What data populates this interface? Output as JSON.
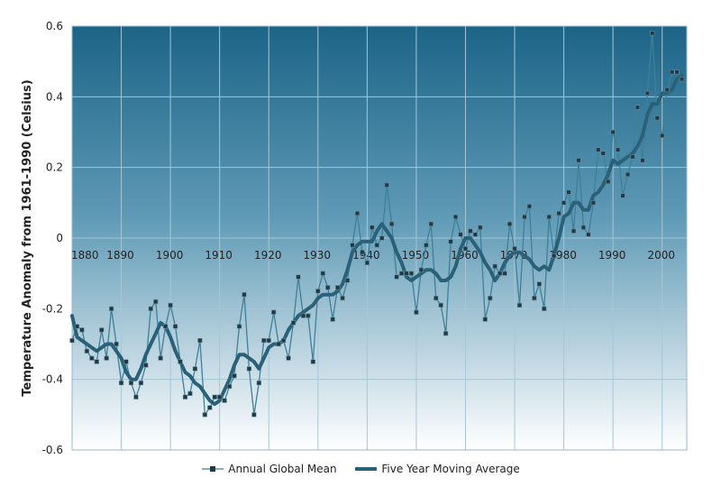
{
  "chart_data": {
    "type": "line",
    "ylabel": "Temperature Anomaly from 1961-1990 (Celsius)",
    "xlim": [
      1880,
      2005
    ],
    "ylim": [
      -0.6,
      0.6
    ],
    "x_ticks": [
      "1880",
      "1890",
      "1900",
      "1910",
      "1920",
      "1930",
      "1940",
      "1950",
      "1960",
      "1970",
      "1980",
      "1990",
      "2000"
    ],
    "y_ticks": [
      "0.6",
      "0.4",
      "0.2",
      "0",
      "-0.2",
      "-0.4",
      "-0.6"
    ],
    "grid": true,
    "legend_position": "bottom",
    "colors": {
      "plot_top": "#1c6487",
      "plot_bottom": "#ffffff",
      "annual_line": "#3f7f98",
      "moving_avg": "#2a6178",
      "marker": "#1f3945"
    },
    "x": [
      1880,
      1881,
      1882,
      1883,
      1884,
      1885,
      1886,
      1887,
      1888,
      1889,
      1890,
      1891,
      1892,
      1893,
      1894,
      1895,
      1896,
      1897,
      1898,
      1899,
      1900,
      1901,
      1902,
      1903,
      1904,
      1905,
      1906,
      1907,
      1908,
      1909,
      1910,
      1911,
      1912,
      1913,
      1914,
      1915,
      1916,
      1917,
      1918,
      1919,
      1920,
      1921,
      1922,
      1923,
      1924,
      1925,
      1926,
      1927,
      1928,
      1929,
      1930,
      1931,
      1932,
      1933,
      1934,
      1935,
      1936,
      1937,
      1938,
      1939,
      1940,
      1941,
      1942,
      1943,
      1944,
      1945,
      1946,
      1947,
      1948,
      1949,
      1950,
      1951,
      1952,
      1953,
      1954,
      1955,
      1956,
      1957,
      1958,
      1959,
      1960,
      1961,
      1962,
      1963,
      1964,
      1965,
      1966,
      1967,
      1968,
      1969,
      1970,
      1971,
      1972,
      1973,
      1974,
      1975,
      1976,
      1977,
      1978,
      1979,
      1980,
      1981,
      1982,
      1983,
      1984,
      1985,
      1986,
      1987,
      1988,
      1989,
      1990,
      1991,
      1992,
      1993,
      1994,
      1995,
      1996,
      1997,
      1998,
      1999,
      2000,
      2001,
      2002,
      2003,
      2004
    ],
    "series": [
      {
        "name": "Annual Global Mean",
        "values": [
          -0.29,
          -0.25,
          -0.26,
          -0.32,
          -0.34,
          -0.35,
          -0.26,
          -0.34,
          -0.2,
          -0.3,
          -0.41,
          -0.35,
          -0.41,
          -0.45,
          -0.41,
          -0.36,
          -0.2,
          -0.18,
          -0.34,
          -0.25,
          -0.19,
          -0.25,
          -0.35,
          -0.45,
          -0.44,
          -0.37,
          -0.29,
          -0.5,
          -0.48,
          -0.45,
          -0.45,
          -0.46,
          -0.42,
          -0.39,
          -0.25,
          -0.16,
          -0.37,
          -0.5,
          -0.41,
          -0.29,
          -0.29,
          -0.21,
          -0.3,
          -0.29,
          -0.34,
          -0.24,
          -0.11,
          -0.22,
          -0.22,
          -0.35,
          -0.15,
          -0.1,
          -0.14,
          -0.23,
          -0.14,
          -0.17,
          -0.12,
          -0.02,
          0.07,
          -0.04,
          -0.07,
          0.03,
          -0.02,
          0.0,
          0.15,
          0.04,
          -0.11,
          -0.1,
          -0.1,
          -0.1,
          -0.21,
          -0.09,
          -0.02,
          0.04,
          -0.17,
          -0.19,
          -0.27,
          -0.01,
          0.06,
          0.01,
          -0.03,
          0.02,
          0.01,
          0.03,
          -0.23,
          -0.17,
          -0.08,
          -0.1,
          -0.1,
          0.04,
          -0.03,
          -0.19,
          0.06,
          0.09,
          -0.17,
          -0.13,
          -0.2,
          0.06,
          -0.05,
          0.07,
          0.1,
          0.13,
          0.02,
          0.22,
          0.03,
          0.01,
          0.1,
          0.25,
          0.24,
          0.16,
          0.3,
          0.25,
          0.12,
          0.18,
          0.23,
          0.37,
          0.22,
          0.41,
          0.58,
          0.34,
          0.29,
          0.42,
          0.47,
          0.47,
          0.45
        ]
      },
      {
        "name": "Five Year Moving Average",
        "values": [
          -0.22,
          -0.28,
          -0.29,
          -0.3,
          -0.31,
          -0.32,
          -0.31,
          -0.3,
          -0.3,
          -0.32,
          -0.34,
          -0.38,
          -0.4,
          -0.4,
          -0.37,
          -0.33,
          -0.3,
          -0.27,
          -0.24,
          -0.25,
          -0.28,
          -0.32,
          -0.35,
          -0.38,
          -0.39,
          -0.41,
          -0.42,
          -0.44,
          -0.46,
          -0.47,
          -0.46,
          -0.43,
          -0.4,
          -0.36,
          -0.33,
          -0.33,
          -0.34,
          -0.35,
          -0.37,
          -0.34,
          -0.31,
          -0.3,
          -0.3,
          -0.29,
          -0.26,
          -0.24,
          -0.22,
          -0.21,
          -0.2,
          -0.19,
          -0.17,
          -0.16,
          -0.16,
          -0.16,
          -0.15,
          -0.13,
          -0.09,
          -0.04,
          -0.02,
          -0.01,
          -0.01,
          -0.01,
          0.02,
          0.04,
          0.02,
          0.0,
          -0.04,
          -0.07,
          -0.11,
          -0.12,
          -0.11,
          -0.1,
          -0.09,
          -0.09,
          -0.1,
          -0.12,
          -0.12,
          -0.11,
          -0.08,
          -0.03,
          0.0,
          0.0,
          -0.02,
          -0.04,
          -0.07,
          -0.09,
          -0.12,
          -0.1,
          -0.07,
          -0.05,
          -0.04,
          -0.04,
          -0.05,
          -0.06,
          -0.08,
          -0.09,
          -0.08,
          -0.09,
          -0.05,
          0.0,
          0.06,
          0.07,
          0.1,
          0.1,
          0.08,
          0.08,
          0.12,
          0.13,
          0.15,
          0.18,
          0.22,
          0.21,
          0.22,
          0.23,
          0.24,
          0.26,
          0.29,
          0.35,
          0.38,
          0.38,
          0.41,
          0.41,
          0.42,
          0.45,
          0.46
        ]
      }
    ]
  }
}
